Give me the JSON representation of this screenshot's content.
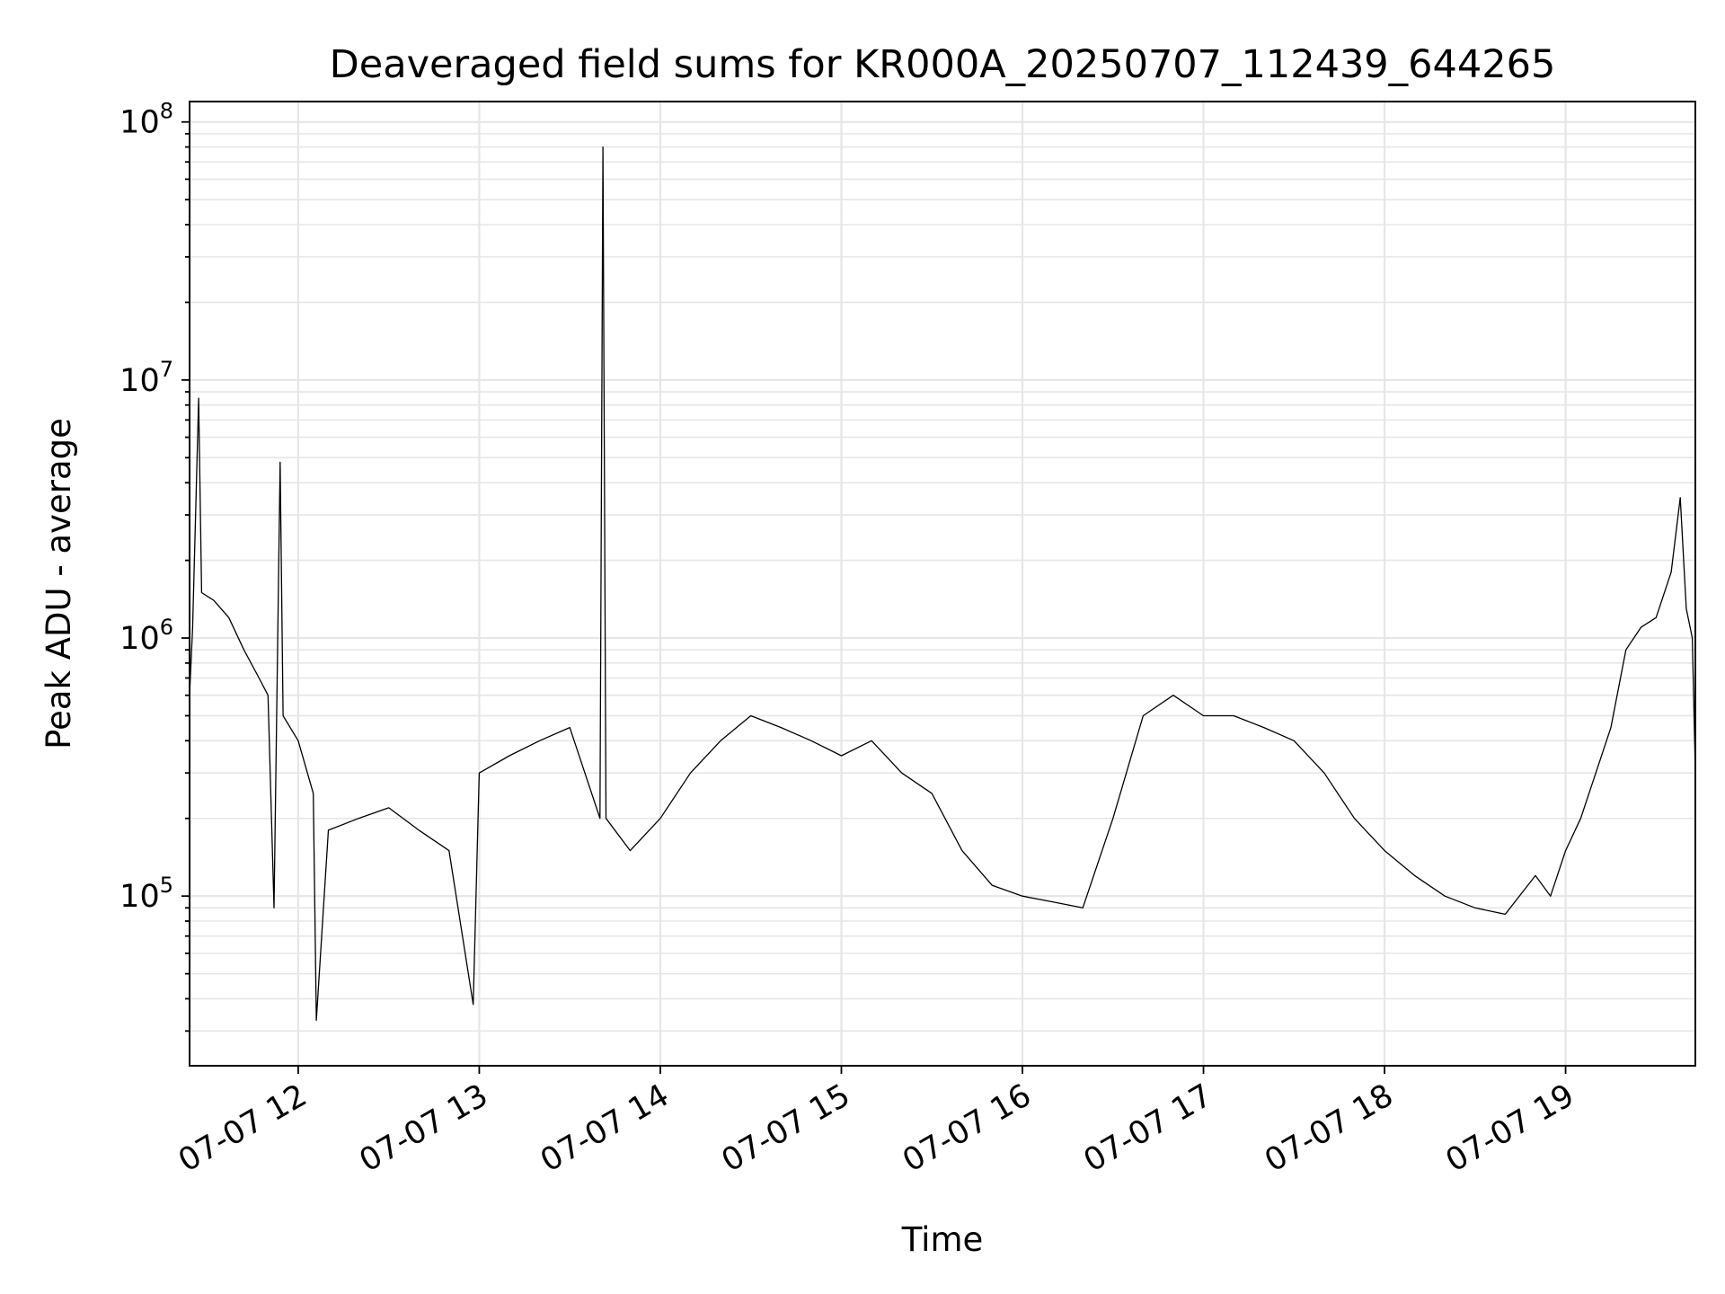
{
  "chart_data": {
    "type": "line",
    "title": "Deaveraged field sums for KR000A_20250707_112439_644265",
    "xlabel": "Time",
    "ylabel": "Peak ADU - average",
    "xscale": "time",
    "yscale": "log",
    "xlim": [
      "2025-07-07T11:24",
      "2025-07-07T19:43"
    ],
    "ylim": [
      22000,
      120000000
    ],
    "grid": true,
    "x_ticks": [
      "2025-07-07T12:00",
      "2025-07-07T13:00",
      "2025-07-07T14:00",
      "2025-07-07T15:00",
      "2025-07-07T16:00",
      "2025-07-07T17:00",
      "2025-07-07T18:00",
      "2025-07-07T19:00"
    ],
    "x_tick_labels": [
      "07-07 12",
      "07-07 13",
      "07-07 14",
      "07-07 15",
      "07-07 16",
      "07-07 17",
      "07-07 18",
      "07-07 19"
    ],
    "y_ticks": [
      100000,
      1000000,
      10000000,
      100000000
    ],
    "y_tick_labels": [
      {
        "base": "10",
        "exp": "5"
      },
      {
        "base": "10",
        "exp": "6"
      },
      {
        "base": "10",
        "exp": "7"
      },
      {
        "base": "10",
        "exp": "8"
      }
    ],
    "series": [
      {
        "color": "#000000",
        "points": [
          [
            "2025-07-07T11:24",
            600000
          ],
          [
            "2025-07-07T11:25",
            1100000
          ],
          [
            "2025-07-07T11:27",
            8500000
          ],
          [
            "2025-07-07T11:28",
            1500000
          ],
          [
            "2025-07-07T11:32",
            1400000
          ],
          [
            "2025-07-07T11:37",
            1200000
          ],
          [
            "2025-07-07T11:42",
            900000
          ],
          [
            "2025-07-07T11:47",
            700000
          ],
          [
            "2025-07-07T11:50",
            600000
          ],
          [
            "2025-07-07T11:52",
            90000
          ],
          [
            "2025-07-07T11:54",
            4800000
          ],
          [
            "2025-07-07T11:55",
            500000
          ],
          [
            "2025-07-07T12:00",
            400000
          ],
          [
            "2025-07-07T12:05",
            250000
          ],
          [
            "2025-07-07T12:06",
            33000
          ],
          [
            "2025-07-07T12:10",
            180000
          ],
          [
            "2025-07-07T12:20",
            200000
          ],
          [
            "2025-07-07T12:30",
            220000
          ],
          [
            "2025-07-07T12:40",
            180000
          ],
          [
            "2025-07-07T12:50",
            150000
          ],
          [
            "2025-07-07T12:58",
            38000
          ],
          [
            "2025-07-07T13:00",
            300000
          ],
          [
            "2025-07-07T13:10",
            350000
          ],
          [
            "2025-07-07T13:20",
            400000
          ],
          [
            "2025-07-07T13:30",
            450000
          ],
          [
            "2025-07-07T13:40",
            200000
          ],
          [
            "2025-07-07T13:41",
            80000000
          ],
          [
            "2025-07-07T13:42",
            200000
          ],
          [
            "2025-07-07T13:50",
            150000
          ],
          [
            "2025-07-07T14:00",
            200000
          ],
          [
            "2025-07-07T14:10",
            300000
          ],
          [
            "2025-07-07T14:20",
            400000
          ],
          [
            "2025-07-07T14:30",
            500000
          ],
          [
            "2025-07-07T14:40",
            450000
          ],
          [
            "2025-07-07T14:50",
            400000
          ],
          [
            "2025-07-07T15:00",
            350000
          ],
          [
            "2025-07-07T15:10",
            400000
          ],
          [
            "2025-07-07T15:20",
            300000
          ],
          [
            "2025-07-07T15:30",
            250000
          ],
          [
            "2025-07-07T15:40",
            150000
          ],
          [
            "2025-07-07T15:50",
            110000
          ],
          [
            "2025-07-07T16:00",
            100000
          ],
          [
            "2025-07-07T16:10",
            95000
          ],
          [
            "2025-07-07T16:20",
            90000
          ],
          [
            "2025-07-07T16:30",
            200000
          ],
          [
            "2025-07-07T16:40",
            500000
          ],
          [
            "2025-07-07T16:50",
            600000
          ],
          [
            "2025-07-07T17:00",
            500000
          ],
          [
            "2025-07-07T17:10",
            500000
          ],
          [
            "2025-07-07T17:20",
            450000
          ],
          [
            "2025-07-07T17:30",
            400000
          ],
          [
            "2025-07-07T17:40",
            300000
          ],
          [
            "2025-07-07T17:50",
            200000
          ],
          [
            "2025-07-07T18:00",
            150000
          ],
          [
            "2025-07-07T18:10",
            120000
          ],
          [
            "2025-07-07T18:20",
            100000
          ],
          [
            "2025-07-07T18:30",
            90000
          ],
          [
            "2025-07-07T18:40",
            85000
          ],
          [
            "2025-07-07T18:50",
            120000
          ],
          [
            "2025-07-07T18:55",
            100000
          ],
          [
            "2025-07-07T19:00",
            150000
          ],
          [
            "2025-07-07T19:05",
            200000
          ],
          [
            "2025-07-07T19:10",
            300000
          ],
          [
            "2025-07-07T19:15",
            450000
          ],
          [
            "2025-07-07T19:20",
            900000
          ],
          [
            "2025-07-07T19:25",
            1100000
          ],
          [
            "2025-07-07T19:30",
            1200000
          ],
          [
            "2025-07-07T19:35",
            1800000
          ],
          [
            "2025-07-07T19:38",
            3500000
          ],
          [
            "2025-07-07T19:40",
            1300000
          ],
          [
            "2025-07-07T19:42",
            1000000
          ],
          [
            "2025-07-07T19:43",
            300000
          ]
        ]
      }
    ]
  }
}
